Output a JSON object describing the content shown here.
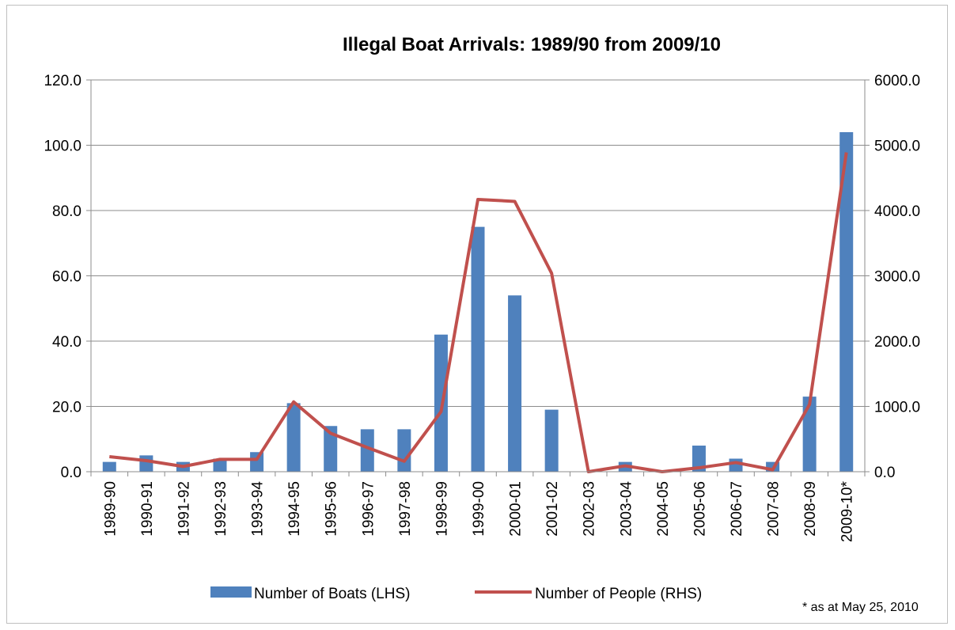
{
  "chart_data": {
    "type": "bar",
    "title": "Illegal Boat Arrivals: 1989/90 from 2009/10",
    "categories": [
      "1989-90",
      "1990-91",
      "1991-92",
      "1992-93",
      "1993-94",
      "1994-95",
      "1995-96",
      "1996-97",
      "1997-98",
      "1998-99",
      "1999-00",
      "2000-01",
      "2001-02",
      "2002-03",
      "2003-04",
      "2004-05",
      "2005-06",
      "2006-07",
      "2007-08",
      "2008-09",
      "2009-10*"
    ],
    "series": [
      {
        "name": "Number of Boats (LHS)",
        "type": "bar",
        "axis": "left",
        "color": "#4f81bd",
        "values": [
          3,
          5,
          3,
          4,
          6,
          21,
          14,
          13,
          13,
          42,
          75,
          54,
          19,
          0,
          3,
          0,
          8,
          4,
          3,
          23,
          104
        ]
      },
      {
        "name": "Number of People (RHS)",
        "type": "line",
        "axis": "right",
        "color": "#c0504d",
        "values": [
          230,
          170,
          80,
          190,
          190,
          1070,
          590,
          370,
          160,
          920,
          4170,
          4140,
          3040,
          0,
          90,
          0,
          60,
          140,
          30,
          1030,
          4890
        ]
      }
    ],
    "y_left": {
      "lim": [
        0,
        120
      ],
      "ticks": [
        "0.0",
        "20.0",
        "40.0",
        "60.0",
        "80.0",
        "100.0",
        "120.0"
      ]
    },
    "y_right": {
      "lim": [
        0,
        6000
      ],
      "ticks": [
        "0.0",
        "1000.0",
        "2000.0",
        "3000.0",
        "4000.0",
        "5000.0",
        "6000.0"
      ]
    },
    "grid": true,
    "legend": "bottom",
    "note": "* as at May 25, 2010"
  }
}
